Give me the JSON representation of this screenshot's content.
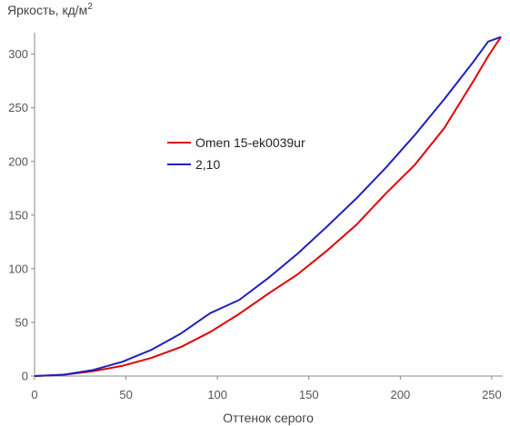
{
  "chart_data": {
    "type": "line",
    "ylabel": "Яркость, кд/м",
    "ylabel_sup": "2",
    "xlabel": "Оттенок серого",
    "xlim": [
      0,
      256
    ],
    "ylim": [
      0,
      320
    ],
    "x_ticks": [
      0,
      50,
      100,
      150,
      200,
      250
    ],
    "y_ticks": [
      0,
      50,
      100,
      150,
      200,
      250,
      300
    ],
    "grid": false,
    "legend_position": "center-left",
    "series": [
      {
        "name": "Omen 15-ek0039ur",
        "color": "#e00000",
        "x": [
          0,
          16,
          32,
          48,
          64,
          80,
          96,
          112,
          128,
          144,
          160,
          176,
          192,
          208,
          224,
          240,
          248,
          255
        ],
        "y": [
          0,
          1.2,
          4.5,
          9.5,
          17,
          27,
          41,
          58,
          77,
          95,
          117,
          141,
          170,
          197,
          231,
          275,
          298,
          316
        ]
      },
      {
        "name": "2,10",
        "color": "#2020c0",
        "x": [
          0,
          16,
          32,
          48,
          64,
          80,
          96,
          112,
          128,
          144,
          160,
          176,
          192,
          208,
          224,
          240,
          248,
          255
        ],
        "y": [
          0,
          1.3,
          5.6,
          13.3,
          24.5,
          39.6,
          58.6,
          71.0,
          91.6,
          114.3,
          139.5,
          165.6,
          194.0,
          224.8,
          258.0,
          293.0,
          311.7,
          316
        ]
      }
    ]
  }
}
